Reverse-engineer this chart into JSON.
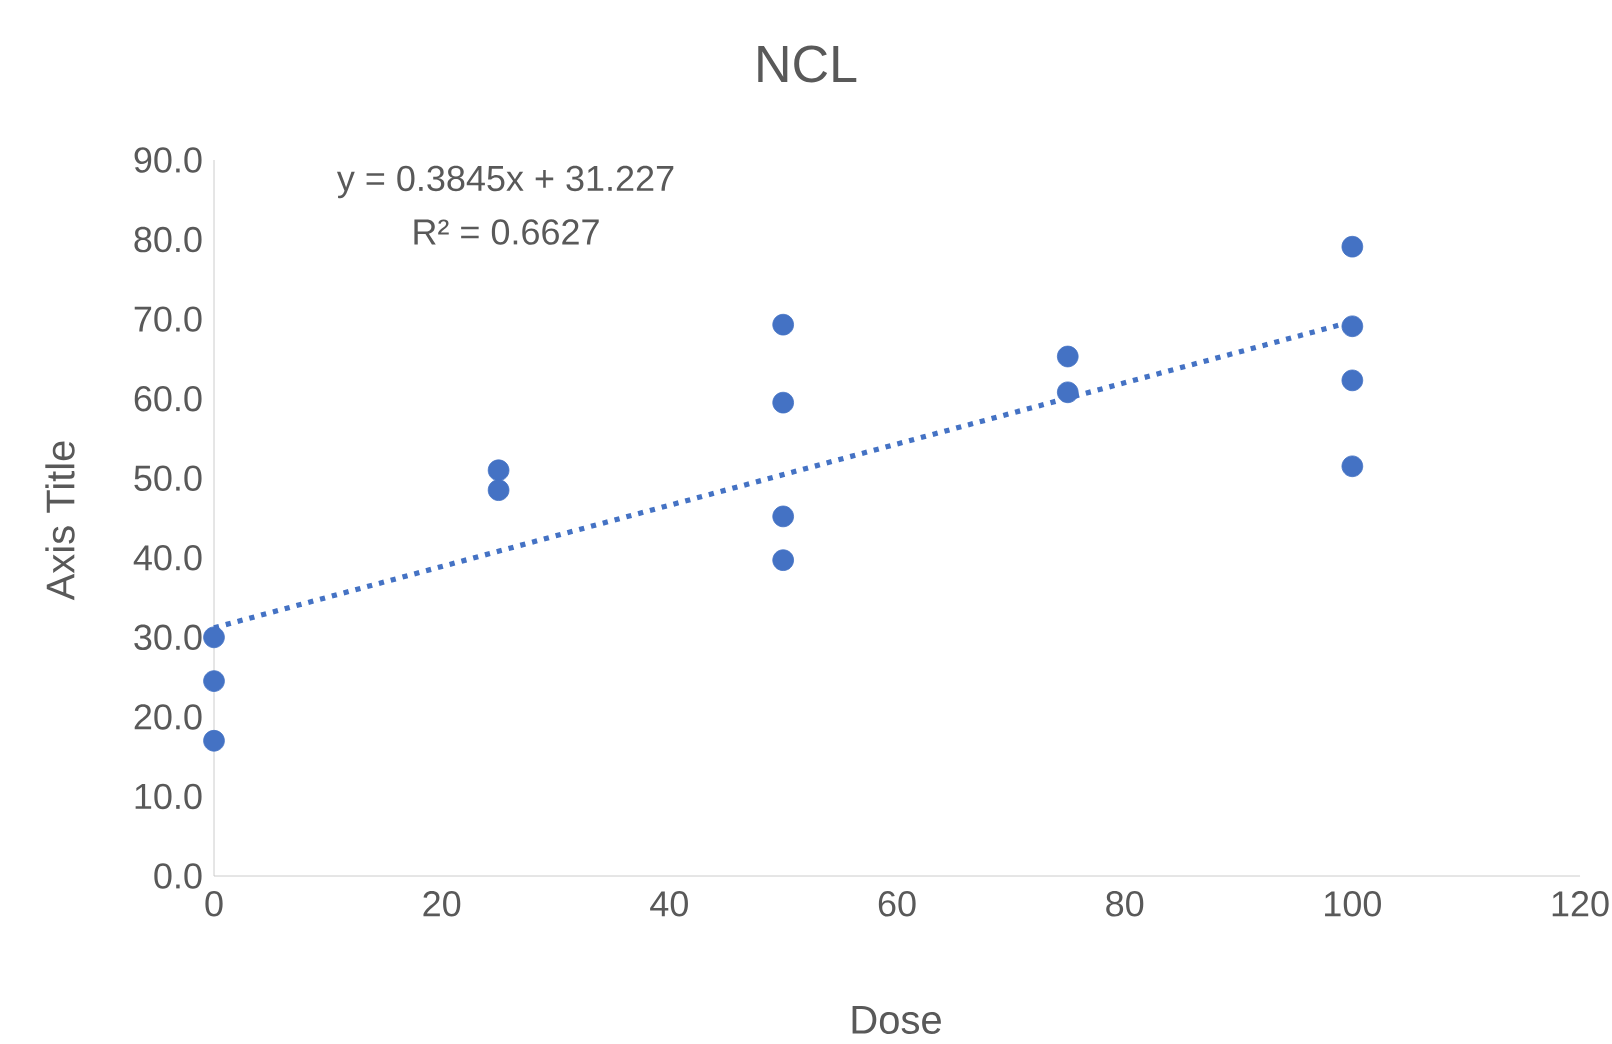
{
  "chart_data": {
    "type": "scatter",
    "title": "NCL",
    "xlabel": "Dose",
    "ylabel": "Axis Title",
    "annotations": [
      "y = 0.3845x + 31.227",
      "R² = 0.6627"
    ],
    "series": [
      {
        "color": "#4472c4",
        "marker": "circle",
        "x": [
          0,
          0,
          0,
          25,
          25,
          50,
          50,
          50,
          50,
          75,
          75,
          100,
          100,
          100,
          100
        ],
        "values": [
          30,
          24.5,
          17,
          51,
          48.5,
          69.3,
          59.5,
          45.2,
          39.7,
          65.3,
          60.8,
          79.1,
          69.1,
          62.3,
          51.5
        ]
      },
      {
        "type": "line",
        "color": "#4472c4",
        "line_style": "dotted",
        "marker": "none",
        "x": [
          0,
          100
        ],
        "values": [
          31.2,
          69.7
        ]
      }
    ],
    "xlim": [
      0,
      120
    ],
    "xticks": [
      0,
      20,
      40,
      60,
      80,
      100,
      120
    ],
    "ylim": [
      0,
      90
    ],
    "yticks": [
      {
        "value": 0,
        "label": "0.0"
      },
      {
        "value": 10,
        "label": "10.0"
      },
      {
        "value": 20,
        "label": "20.0"
      },
      {
        "value": 30,
        "label": "30.0"
      },
      {
        "value": 40,
        "label": "40.0"
      },
      {
        "value": 50,
        "label": "50.0"
      },
      {
        "value": 60,
        "label": "60.0"
      },
      {
        "value": 70,
        "label": "70.0"
      },
      {
        "value": 80,
        "label": "80.0"
      },
      {
        "value": 90,
        "label": "90.0"
      }
    ],
    "grid": false
  }
}
